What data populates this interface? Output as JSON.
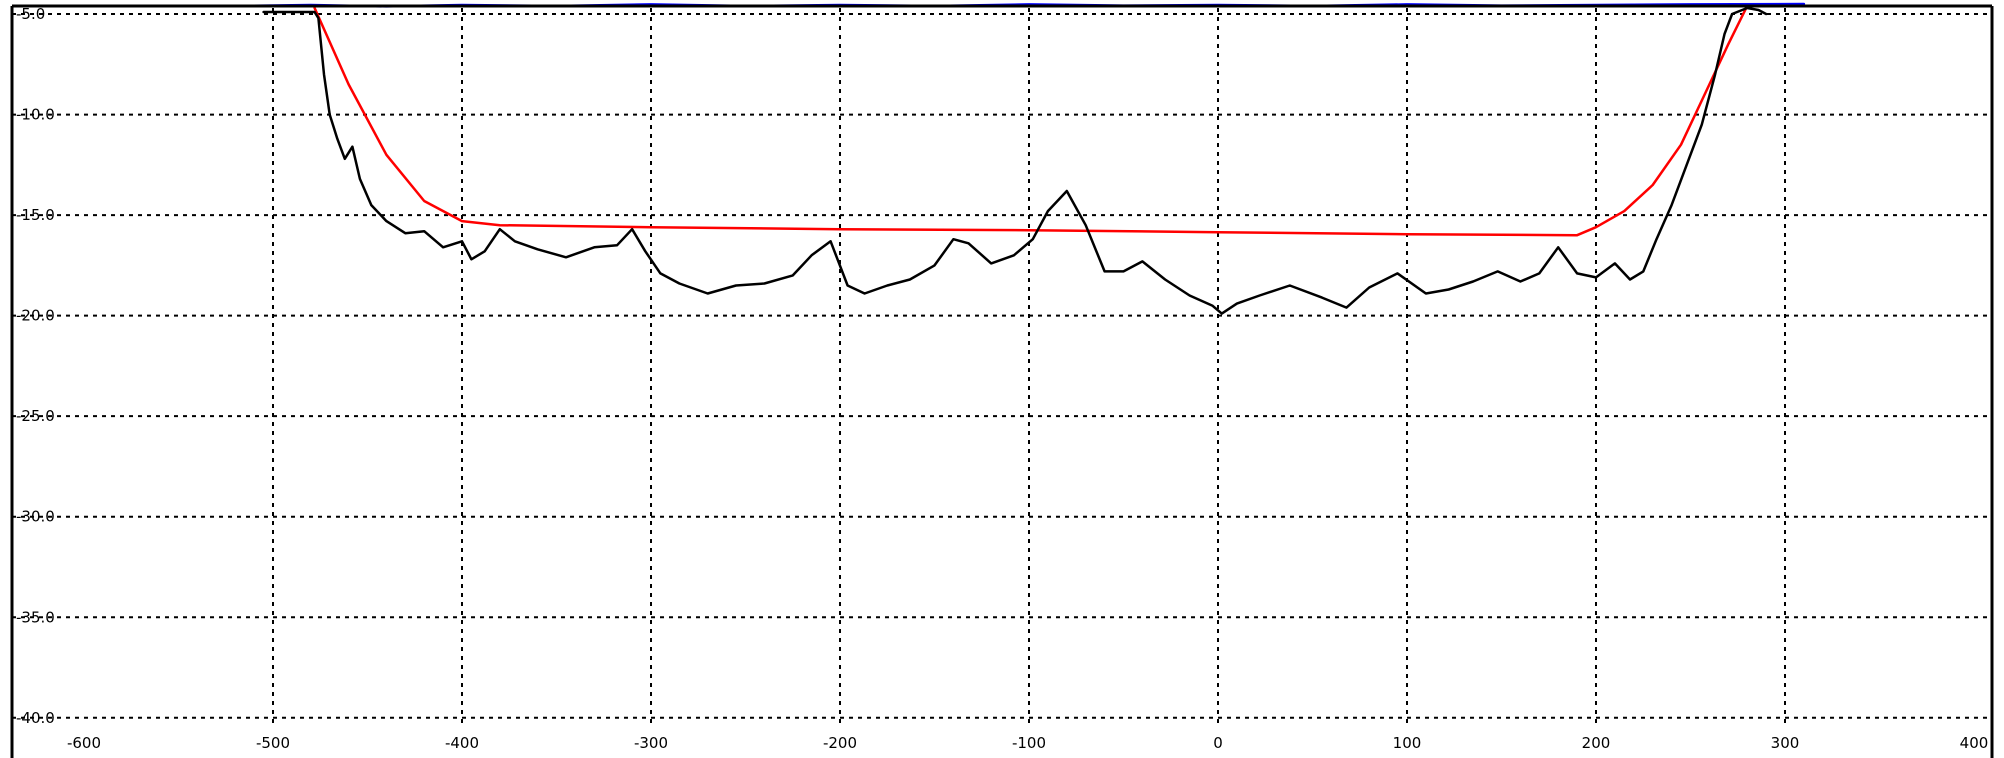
{
  "chart_data": {
    "type": "line",
    "title": "",
    "xlabel": "",
    "ylabel": "",
    "xlim": [
      -600,
      400
    ],
    "ylim": [
      -42.0,
      -4.6
    ],
    "grid": true,
    "x_ticks": [
      -600,
      -500,
      -400,
      -300,
      -200,
      -100,
      0,
      100,
      200,
      300,
      400
    ],
    "x_tick_labels": [
      "-600",
      "-500",
      "-400",
      "-300",
      "-200",
      "-100",
      "0",
      "100",
      "200",
      "300",
      "400"
    ],
    "y_ticks": [
      -5,
      -10,
      -15,
      -20,
      -25,
      -30,
      -35,
      -40
    ],
    "y_tick_labels": [
      "-5.0",
      "-10.0",
      "-15.0",
      "-20.0",
      "-25.0",
      "-30.0",
      "-35.0",
      "-40.0"
    ],
    "series": [
      {
        "color": "#0000ff",
        "points": [
          [
            -520,
            -4.6
          ],
          [
            -480,
            -4.55
          ],
          [
            -440,
            -4.62
          ],
          [
            -400,
            -4.55
          ],
          [
            -350,
            -4.6
          ],
          [
            -300,
            -4.52
          ],
          [
            -250,
            -4.6
          ],
          [
            -200,
            -4.55
          ],
          [
            -150,
            -4.6
          ],
          [
            -100,
            -4.52
          ],
          [
            -50,
            -4.58
          ],
          [
            0,
            -4.55
          ],
          [
            50,
            -4.6
          ],
          [
            100,
            -4.52
          ],
          [
            150,
            -4.58
          ],
          [
            200,
            -4.55
          ],
          [
            250,
            -4.52
          ],
          [
            310,
            -4.5
          ]
        ]
      },
      {
        "color": "#ff0000",
        "points": [
          [
            -478,
            -4.7
          ],
          [
            -460,
            -8.5
          ],
          [
            -440,
            -12.0
          ],
          [
            -420,
            -14.3
          ],
          [
            -400,
            -15.3
          ],
          [
            -380,
            -15.5
          ],
          [
            -300,
            -15.6
          ],
          [
            -200,
            -15.7
          ],
          [
            -100,
            -15.75
          ],
          [
            0,
            -15.85
          ],
          [
            100,
            -15.95
          ],
          [
            190,
            -16.0
          ],
          [
            200,
            -15.6
          ],
          [
            215,
            -14.8
          ],
          [
            230,
            -13.5
          ],
          [
            245,
            -11.5
          ],
          [
            260,
            -8.5
          ],
          [
            270,
            -6.5
          ],
          [
            280,
            -4.6
          ]
        ]
      },
      {
        "color": "#000000",
        "points": [
          [
            -505,
            -4.9
          ],
          [
            -478,
            -4.9
          ],
          [
            -476,
            -5.2
          ],
          [
            -473,
            -8.0
          ],
          [
            -470,
            -10.0
          ],
          [
            -466,
            -11.2
          ],
          [
            -462,
            -12.2
          ],
          [
            -458,
            -11.6
          ],
          [
            -454,
            -13.2
          ],
          [
            -448,
            -14.5
          ],
          [
            -440,
            -15.3
          ],
          [
            -430,
            -15.9
          ],
          [
            -420,
            -15.8
          ],
          [
            -410,
            -16.6
          ],
          [
            -400,
            -16.3
          ],
          [
            -395,
            -17.2
          ],
          [
            -388,
            -16.8
          ],
          [
            -380,
            -15.7
          ],
          [
            -372,
            -16.3
          ],
          [
            -360,
            -16.7
          ],
          [
            -345,
            -17.1
          ],
          [
            -330,
            -16.6
          ],
          [
            -318,
            -16.5
          ],
          [
            -310,
            -15.7
          ],
          [
            -303,
            -16.8
          ],
          [
            -295,
            -17.9
          ],
          [
            -285,
            -18.4
          ],
          [
            -270,
            -18.9
          ],
          [
            -255,
            -18.5
          ],
          [
            -240,
            -18.4
          ],
          [
            -225,
            -18.0
          ],
          [
            -215,
            -17.0
          ],
          [
            -205,
            -16.3
          ],
          [
            -196,
            -18.5
          ],
          [
            -187,
            -18.9
          ],
          [
            -175,
            -18.5
          ],
          [
            -163,
            -18.2
          ],
          [
            -150,
            -17.5
          ],
          [
            -140,
            -16.2
          ],
          [
            -132,
            -16.4
          ],
          [
            -120,
            -17.4
          ],
          [
            -108,
            -17.0
          ],
          [
            -98,
            -16.2
          ],
          [
            -90,
            -14.8
          ],
          [
            -80,
            -13.8
          ],
          [
            -70,
            -15.5
          ],
          [
            -60,
            -17.8
          ],
          [
            -50,
            -17.8
          ],
          [
            -40,
            -17.3
          ],
          [
            -28,
            -18.2
          ],
          [
            -15,
            -19.0
          ],
          [
            -3,
            -19.5
          ],
          [
            2,
            -19.9
          ],
          [
            10,
            -19.4
          ],
          [
            22,
            -19.0
          ],
          [
            38,
            -18.5
          ],
          [
            55,
            -19.1
          ],
          [
            68,
            -19.6
          ],
          [
            80,
            -18.6
          ],
          [
            95,
            -17.9
          ],
          [
            110,
            -18.9
          ],
          [
            122,
            -18.7
          ],
          [
            135,
            -18.3
          ],
          [
            148,
            -17.8
          ],
          [
            160,
            -18.3
          ],
          [
            170,
            -17.9
          ],
          [
            180,
            -16.6
          ],
          [
            190,
            -17.9
          ],
          [
            200,
            -18.1
          ],
          [
            210,
            -17.4
          ],
          [
            218,
            -18.2
          ],
          [
            225,
            -17.8
          ],
          [
            232,
            -16.2
          ],
          [
            240,
            -14.5
          ],
          [
            248,
            -12.5
          ],
          [
            256,
            -10.5
          ],
          [
            263,
            -8.0
          ],
          [
            268,
            -6.0
          ],
          [
            272,
            -5.0
          ],
          [
            280,
            -4.7
          ],
          [
            286,
            -4.8
          ],
          [
            290,
            -5.0
          ]
        ]
      }
    ]
  }
}
